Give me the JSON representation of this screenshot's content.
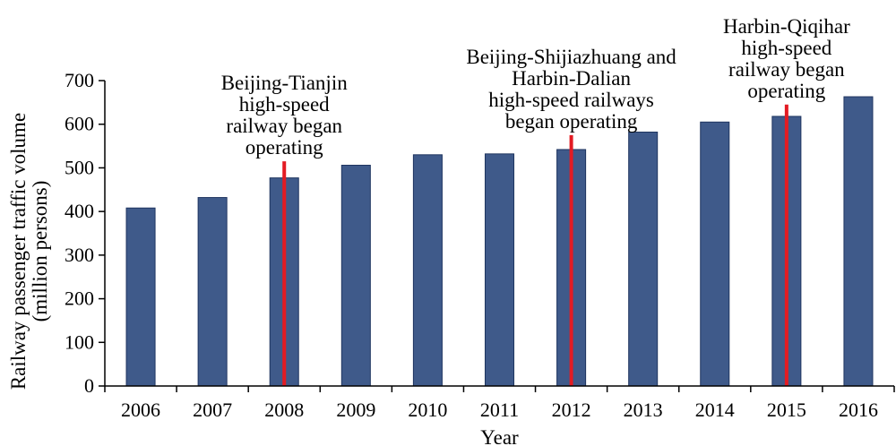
{
  "chart_data": {
    "type": "bar",
    "categories": [
      "2006",
      "2007",
      "2008",
      "2009",
      "2010",
      "2011",
      "2012",
      "2013",
      "2014",
      "2015",
      "2016"
    ],
    "values": [
      408,
      432,
      477,
      506,
      530,
      532,
      542,
      582,
      605,
      618,
      663
    ],
    "xlabel": "Year",
    "ylabel_lines": [
      "Railway passenger traffic volume",
      "(million persons)"
    ],
    "ylim": [
      0,
      700
    ],
    "yticks": [
      0,
      100,
      200,
      300,
      400,
      500,
      600,
      700
    ],
    "grid": false,
    "bar_color": "#3f5a8a",
    "bar_edge_color": "#1f3560",
    "annotation_line_color": "#e31b23",
    "annotations": [
      {
        "category": "2008",
        "line_top_value": 515,
        "lines": [
          "Beijing-Tianjin",
          "high-speed",
          "railway began",
          "operating"
        ]
      },
      {
        "category": "2012",
        "line_top_value": 575,
        "lines": [
          "Beijing-Shijiazhuang and",
          "Harbin-Dalian",
          "high-speed railways",
          "began operating"
        ]
      },
      {
        "category": "2015",
        "line_top_value": 645,
        "lines": [
          "Harbin-Qiqihar",
          "high-speed",
          "railway began",
          "operating"
        ]
      }
    ]
  }
}
